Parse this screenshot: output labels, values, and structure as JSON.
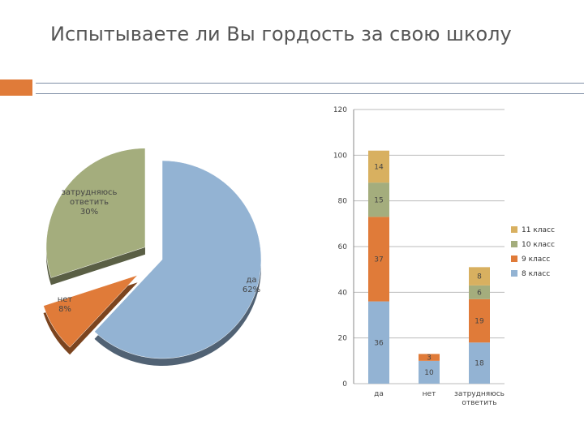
{
  "title": "Испытываете ли Вы гордость за свою школу",
  "colors": {
    "accent": "#e07b39",
    "grid": "#bbbbbb",
    "axis": "#888888"
  },
  "chart_data": [
    {
      "type": "pie",
      "slices": [
        {
          "label": "да",
          "value": 62,
          "value_label": "62%",
          "color": "#93b3d3"
        },
        {
          "label": "нет",
          "value": 8,
          "value_label": "8%",
          "color": "#e07b39"
        },
        {
          "label": "затрудняюсь ответить",
          "value": 30,
          "value_label": "30%",
          "color": "#a4ad7d"
        }
      ]
    },
    {
      "type": "bar",
      "stacked": true,
      "categories": [
        "да",
        "нет",
        "затрудняюсь ответить"
      ],
      "ylim": [
        0,
        120
      ],
      "yticks": [
        0,
        20,
        40,
        60,
        80,
        100,
        120
      ],
      "grid": true,
      "legend_position": "right",
      "series": [
        {
          "name": "8 класс",
          "color": "#93b3d3",
          "values": [
            36,
            10,
            18
          ]
        },
        {
          "name": "9 класс",
          "color": "#e07b39",
          "values": [
            37,
            3,
            19
          ]
        },
        {
          "name": "10 класс",
          "color": "#a4ad7d",
          "values": [
            15,
            0,
            6
          ]
        },
        {
          "name": "11 класс",
          "color": "#d8b060",
          "values": [
            14,
            0,
            8
          ]
        }
      ]
    }
  ]
}
